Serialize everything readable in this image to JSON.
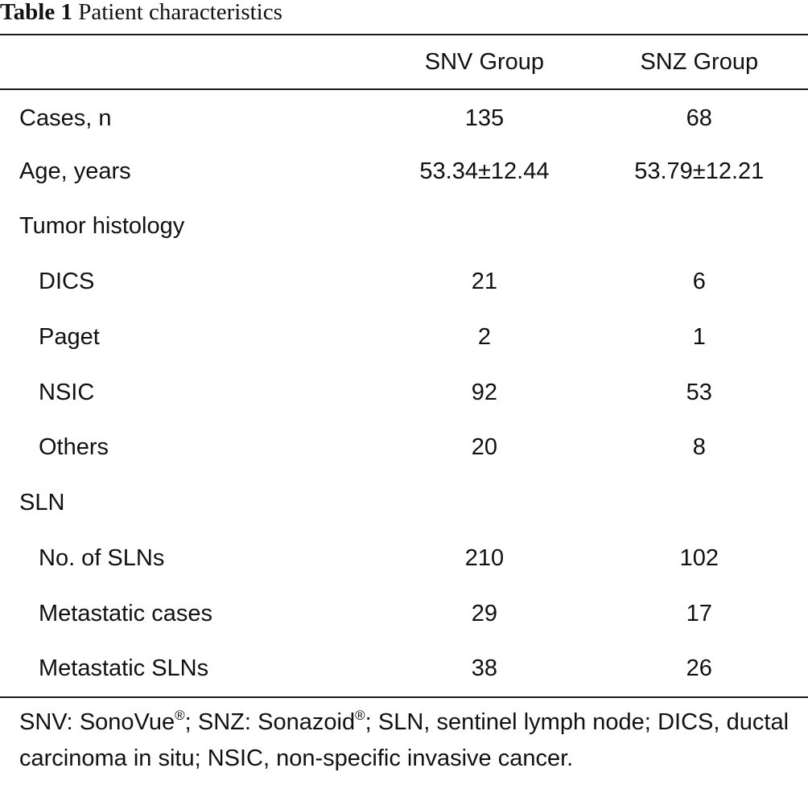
{
  "caption": {
    "label": "Table 1",
    "title": "Patient characteristics"
  },
  "table": {
    "headers": [
      "",
      "SNV Group",
      "SNZ Group"
    ],
    "rows": [
      {
        "label": "Cases, n",
        "snv": "135",
        "snz": "68",
        "indent": false
      },
      {
        "label": "Age, years",
        "snv": "53.34±12.44",
        "snz": "53.79±12.21",
        "indent": false
      },
      {
        "label": "Tumor histology",
        "snv": "",
        "snz": "",
        "indent": false
      },
      {
        "label": "DICS",
        "snv": "21",
        "snz": "6",
        "indent": true
      },
      {
        "label": "Paget",
        "snv": "2",
        "snz": "1",
        "indent": true
      },
      {
        "label": "NSIC",
        "snv": "92",
        "snz": "53",
        "indent": true
      },
      {
        "label": "Others",
        "snv": "20",
        "snz": "8",
        "indent": true
      },
      {
        "label": "SLN",
        "snv": "",
        "snz": "",
        "indent": false
      },
      {
        "label": "No. of SLNs",
        "snv": "210",
        "snz": "102",
        "indent": true
      },
      {
        "label": "Metastatic cases",
        "snv": "29",
        "snz": "17",
        "indent": true
      },
      {
        "label": "Metastatic SLNs",
        "snv": "38",
        "snz": "26",
        "indent": true
      }
    ]
  },
  "footnote": {
    "part1": "SNV: SonoVue",
    "reg1": "®",
    "part2": "; SNZ: Sonazoid",
    "reg2": "®",
    "part3": "; SLN, sentinel lymph node; DICS, ductal carcinoma in situ; NSIC, non-specific invasive cancer."
  }
}
